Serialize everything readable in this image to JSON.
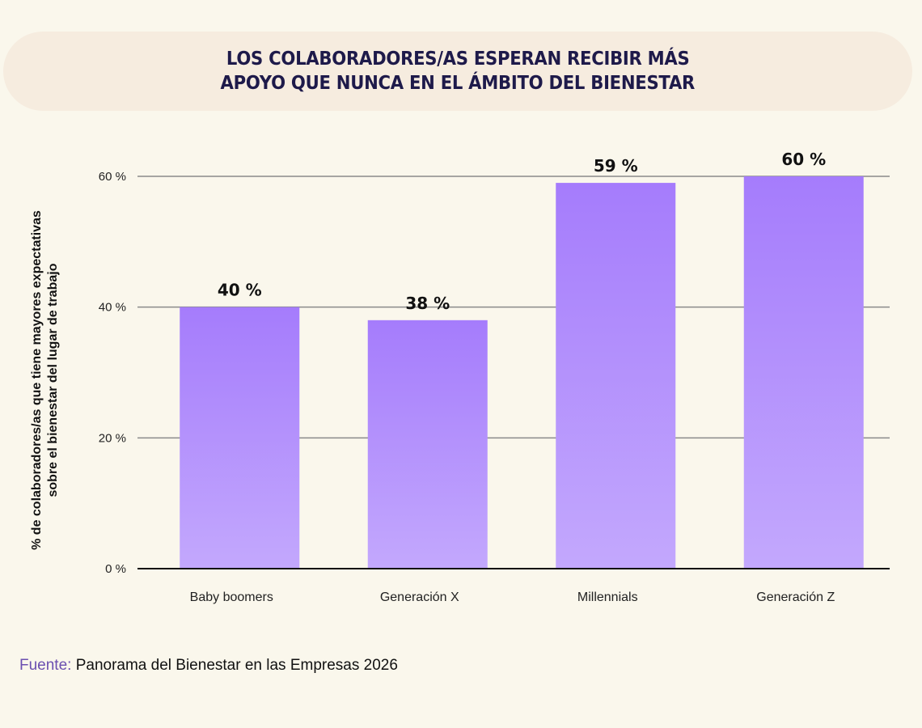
{
  "title": {
    "line1": "LOS COLABORADORES/AS ESPERAN RECIBIR MÁS",
    "line2": "APOYO QUE NUNCA EN EL ÁMBITO DEL BIENESTAR"
  },
  "chart_data": {
    "type": "bar",
    "title": "LOS COLABORADORES/AS ESPERAN RECIBIR MÁS APOYO QUE NUNCA EN EL ÁMBITO DEL BIENESTAR",
    "categories": [
      "Baby boomers",
      "Generación X",
      "Millennials",
      "Generación Z"
    ],
    "values": [
      40,
      38,
      59,
      60
    ],
    "data_labels": [
      "40 %",
      "38 %",
      "59 %",
      "60 %"
    ],
    "ylabel": "% de colaboradores/as que tiene mayores expectativas sobre el bienestar del lugar de trabajo",
    "ylabel_lines": [
      "% de colaboradores/as que tiene mayores expectativas",
      "sobre el bienestar del lugar de trabajo"
    ],
    "xlabel": "",
    "ylim": [
      0,
      60
    ],
    "yticks": [
      0,
      20,
      40,
      60
    ],
    "ytick_labels": [
      "0 %",
      "20 %",
      "40 %",
      "60 %"
    ],
    "grid": true,
    "colors": {
      "bar_top": "#a57cfc",
      "bar_bottom": "#c3a8fd",
      "grid": "#8a8a8a"
    }
  },
  "source": {
    "label": "Fuente:",
    "text": " Panorama del Bienestar en las Empresas 2026"
  }
}
